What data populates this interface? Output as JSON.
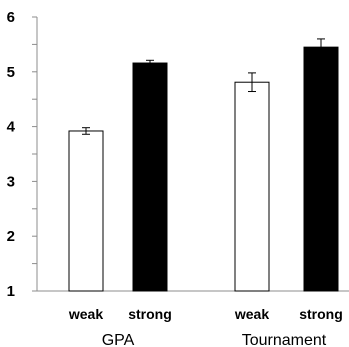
{
  "chart_data": {
    "type": "bar",
    "title": "",
    "xlabel": "",
    "ylabel": "",
    "ylim": [
      1,
      6
    ],
    "yticks": [
      "1",
      "2",
      "3",
      "4",
      "5",
      "6"
    ],
    "grid": false,
    "groups": [
      {
        "name": "GPA",
        "bars": [
          {
            "category": "weak",
            "value": 3.92,
            "error": 0.06,
            "fill": "#ffffff"
          },
          {
            "category": "strong",
            "value": 5.16,
            "error": 0.05,
            "fill": "#000000"
          }
        ]
      },
      {
        "name": "Tournament",
        "bars": [
          {
            "category": "weak",
            "value": 4.81,
            "error": 0.17,
            "fill": "#ffffff"
          },
          {
            "category": "strong",
            "value": 5.45,
            "error": 0.15,
            "fill": "#000000"
          }
        ]
      }
    ]
  }
}
